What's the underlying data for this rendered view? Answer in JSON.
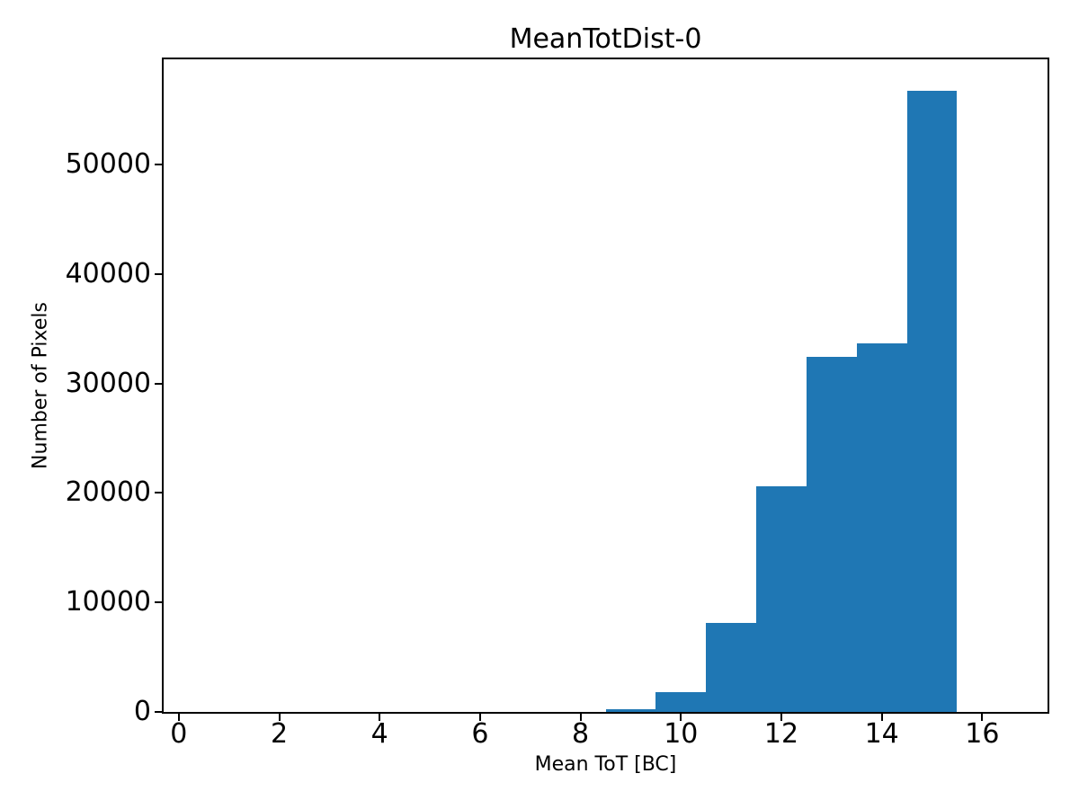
{
  "figure": {
    "title": "MeanTotDist-0",
    "xlabel": "Mean ToT [BC]",
    "ylabel": "Number of Pixels"
  },
  "chart_data": {
    "type": "bar",
    "subtype": "histogram",
    "title": "MeanTotDist-0",
    "xlabel": "Mean ToT [BC]",
    "ylabel": "Number of Pixels",
    "bin_edges": [
      0.5,
      1.5,
      2.5,
      3.5,
      4.5,
      5.5,
      6.5,
      7.5,
      8.5,
      9.5,
      10.5,
      11.5,
      12.5,
      13.5,
      14.5,
      15.5,
      16.5
    ],
    "counts": [
      0,
      0,
      0,
      0,
      0,
      0,
      0,
      0,
      250,
      1800,
      8100,
      20600,
      32400,
      33700,
      56760,
      0
    ],
    "xlim": [
      -0.3,
      17.3
    ],
    "ylim": [
      0,
      59600
    ],
    "x_ticks": [
      0,
      2,
      4,
      6,
      8,
      10,
      12,
      14,
      16
    ],
    "y_ticks": [
      0,
      10000,
      20000,
      30000,
      40000,
      50000
    ],
    "bar_color": "#1f77b4",
    "axis_color": "#000000",
    "background_color": "#ffffff",
    "grid": false,
    "legend": false
  }
}
